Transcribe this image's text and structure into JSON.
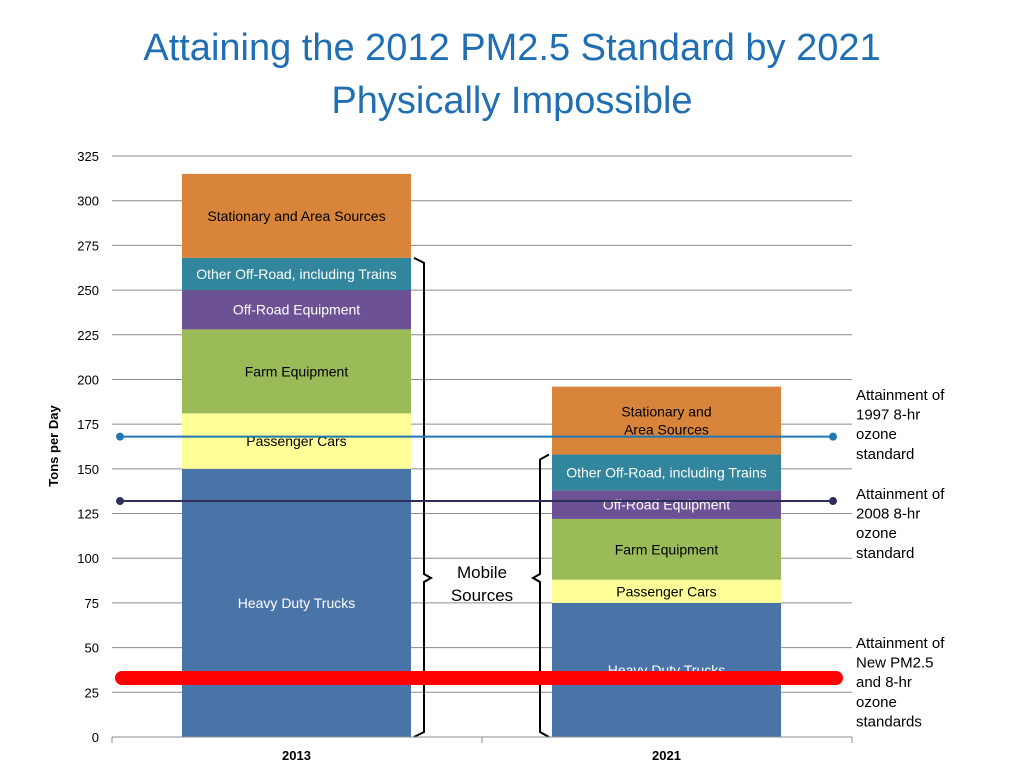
{
  "title": {
    "line1": "Attaining the 2012 PM2.5 Standard by 2021",
    "line2": "Physically Impossible"
  },
  "chart_data": {
    "type": "bar",
    "stacked": true,
    "ylabel": "Tons per Day",
    "ylim": [
      0,
      325
    ],
    "yticks": [
      0,
      25,
      50,
      75,
      100,
      125,
      150,
      175,
      200,
      225,
      250,
      275,
      300,
      325
    ],
    "grid": true,
    "categories": [
      "2013",
      "2021"
    ],
    "series": [
      {
        "name": "Heavy Duty Trucks",
        "values": [
          150,
          75
        ],
        "color": "#4a74a8",
        "labels": [
          "Heavy Duty Trucks",
          "Heavy Duty Trucks"
        ],
        "textColor": "#ffffff"
      },
      {
        "name": "Passenger Cars",
        "values": [
          31,
          13
        ],
        "color": "#ffff99",
        "labels": [
          "Passenger Cars",
          "Passenger Cars"
        ],
        "textColor": "#000000"
      },
      {
        "name": "Farm Equipment",
        "values": [
          47,
          34
        ],
        "color": "#9bbb59",
        "labels": [
          "Farm Equipment",
          "Farm Equipment"
        ],
        "textColor": "#000000"
      },
      {
        "name": "Off-Road Equipment",
        "values": [
          22,
          16
        ],
        "color": "#6c5195",
        "labels": [
          "Off-Road Equipment",
          "Off-Road Equipment"
        ],
        "textColor": "#ffffff"
      },
      {
        "name": "Other Off-Road, including Trains",
        "values": [
          18,
          20
        ],
        "color": "#31859c",
        "labels": [
          "Other Off-Road, including  Trains",
          "Other Off-Road, including  Trains"
        ],
        "textColor": "#ffffff"
      },
      {
        "name": "Stationary and Area Sources",
        "values": [
          47,
          38
        ],
        "color": "#d9843b",
        "labels": [
          "Stationary and Area Sources",
          "Stationary and\nArea Sources"
        ],
        "textColor": "#000000"
      }
    ],
    "reference_lines": [
      {
        "value": 168,
        "color": "#1f77b4",
        "thickness": "thin",
        "label": [
          "Attainment of",
          "1997 8-hr",
          "ozone",
          "standard"
        ]
      },
      {
        "value": 132,
        "color": "#2e2e5a",
        "thickness": "thin",
        "label": [
          "Attainment of",
          "2008 8-hr",
          "ozone",
          "standard"
        ]
      },
      {
        "value": 33,
        "color": "#ff0000",
        "thickness": "thick",
        "label": [
          "Attainment of",
          "New PM2.5",
          "and 8-hr",
          "ozone",
          "standards"
        ]
      }
    ],
    "annotation": {
      "text": [
        "Mobile",
        "Sources"
      ]
    }
  }
}
